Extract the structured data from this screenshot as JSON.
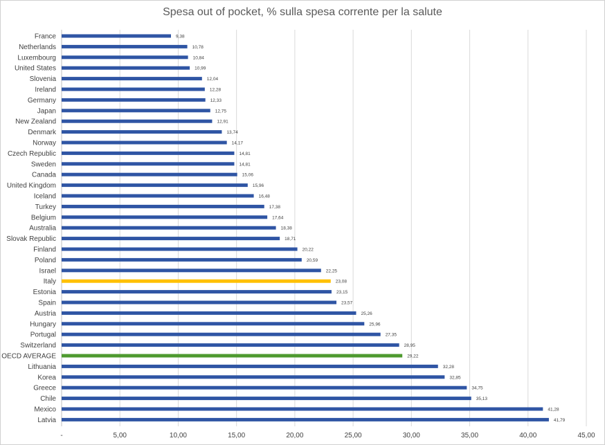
{
  "chart_data": {
    "type": "bar",
    "orientation": "horizontal",
    "title": "Spesa out of pocket, % sulla spesa corrente per la salute",
    "xlim": [
      0,
      45
    ],
    "x_tick_labels": [
      "-",
      "5,00",
      "10,00",
      "15,00",
      "20,00",
      "25,00",
      "30,00",
      "35,00",
      "40,00",
      "45,00"
    ],
    "grid": "vertical",
    "colors": {
      "default": "#2F55A4",
      "italy": "#FFC000",
      "oecd": "#4E9A2F"
    },
    "categories": [
      "France",
      "Netherlands",
      "Luxembourg",
      "United States",
      "Slovenia",
      "Ireland",
      "Germany",
      "Japan",
      "New Zealand",
      "Denmark",
      "Norway",
      "Czech Republic",
      "Sweden",
      "Canada",
      "United Kingdom",
      "Iceland",
      "Turkey",
      "Belgium",
      "Australia",
      "Slovak Republic",
      "Finland",
      "Poland",
      "Israel",
      "Italy",
      "Estonia",
      "Spain",
      "Austria",
      "Hungary",
      "Portugal",
      "Switzerland",
      "OECD AVERAGE",
      "Lithuania",
      "Korea",
      "Greece",
      "Chile",
      "Mexico",
      "Latvia"
    ],
    "values": [
      9.38,
      10.78,
      10.84,
      10.99,
      12.04,
      12.28,
      12.33,
      12.75,
      12.91,
      13.74,
      14.17,
      14.81,
      14.81,
      15.06,
      15.96,
      16.48,
      17.38,
      17.64,
      18.38,
      18.71,
      20.22,
      20.59,
      22.25,
      23.08,
      23.15,
      23.57,
      25.26,
      25.96,
      27.35,
      28.95,
      29.22,
      32.28,
      32.85,
      34.75,
      35.13,
      41.28,
      41.79
    ],
    "value_labels": [
      "9,38",
      "10,78",
      "10,84",
      "10,99",
      "12,04",
      "12,28",
      "12,33",
      "12,75",
      "12,91",
      "13,74",
      "14,17",
      "14,81",
      "14,81",
      "15,06",
      "15,96",
      "16,48",
      "17,38",
      "17,64",
      "18,38",
      "18,71",
      "20,22",
      "20,59",
      "22,25",
      "23,08",
      "23,15",
      "23,57",
      "25,26",
      "25,96",
      "27,35",
      "28,95",
      "29,22",
      "32,28",
      "32,85",
      "34,75",
      "35,13",
      "41,28",
      "41,79"
    ],
    "highlight": {
      "Italy": "italy",
      "OECD AVERAGE": "oecd"
    }
  }
}
